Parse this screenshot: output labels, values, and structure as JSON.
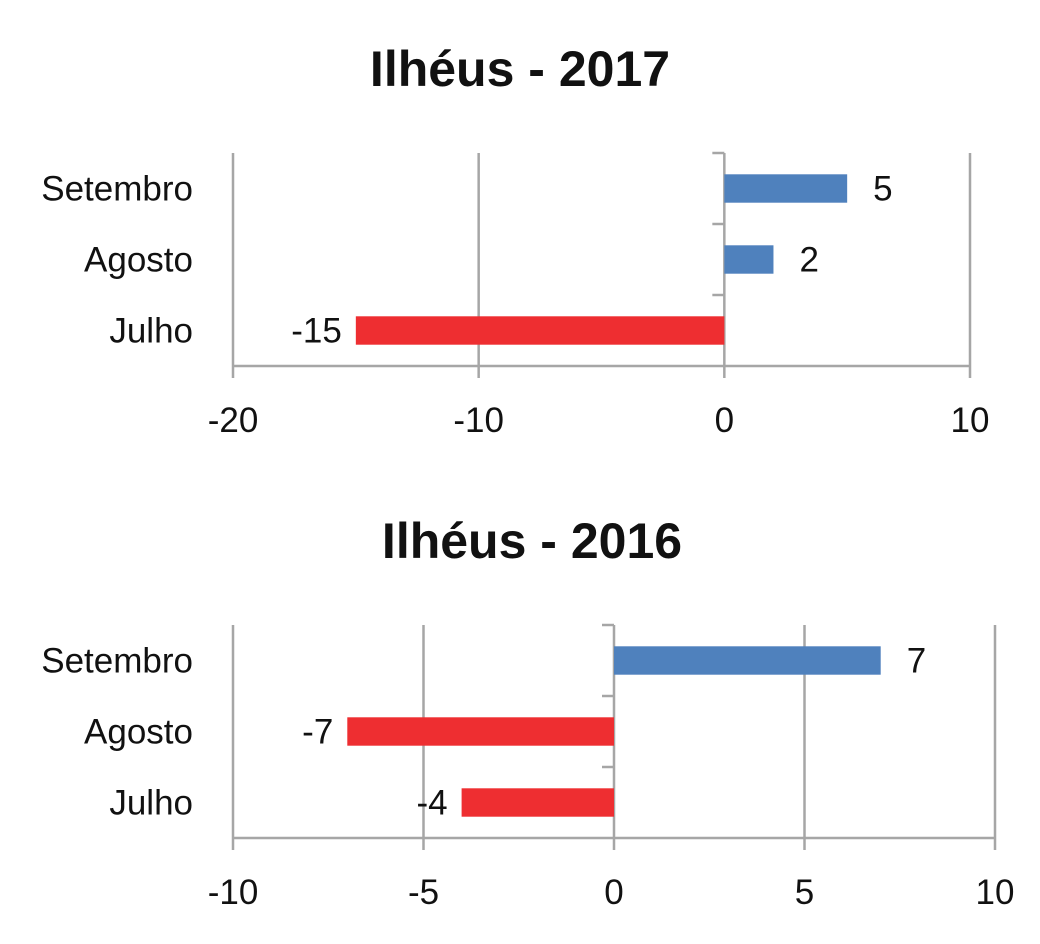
{
  "chart_data": [
    {
      "type": "bar",
      "orientation": "horizontal",
      "title": "Ilhéus - 2017",
      "categories": [
        "Setembro",
        "Agosto",
        "Julho"
      ],
      "values": [
        5,
        2,
        -15
      ],
      "data_labels": [
        "5",
        "2",
        "-15"
      ],
      "xlim": [
        -20,
        10
      ],
      "xticks": [
        -20,
        -10,
        0,
        10
      ],
      "xtick_labels": [
        "-20",
        "-10",
        "0",
        "10"
      ],
      "xlabel": "",
      "ylabel": "",
      "grid": "vertical",
      "legend": "none",
      "colors": {
        "positive": "#4f81bd",
        "negative": "#ee2e31"
      }
    },
    {
      "type": "bar",
      "orientation": "horizontal",
      "title": "Ilhéus - 2016",
      "categories": [
        "Setembro",
        "Agosto",
        "Julho"
      ],
      "values": [
        7,
        -7,
        -4
      ],
      "data_labels": [
        "7",
        "-7",
        "-4"
      ],
      "xlim": [
        -10,
        10
      ],
      "xticks": [
        -10,
        -5,
        0,
        5,
        10
      ],
      "xtick_labels": [
        "-10",
        "-5",
        "0",
        "5",
        "10"
      ],
      "xlabel": "",
      "ylabel": "",
      "grid": "vertical",
      "legend": "none",
      "colors": {
        "positive": "#4f81bd",
        "negative": "#ee2e31"
      }
    }
  ]
}
